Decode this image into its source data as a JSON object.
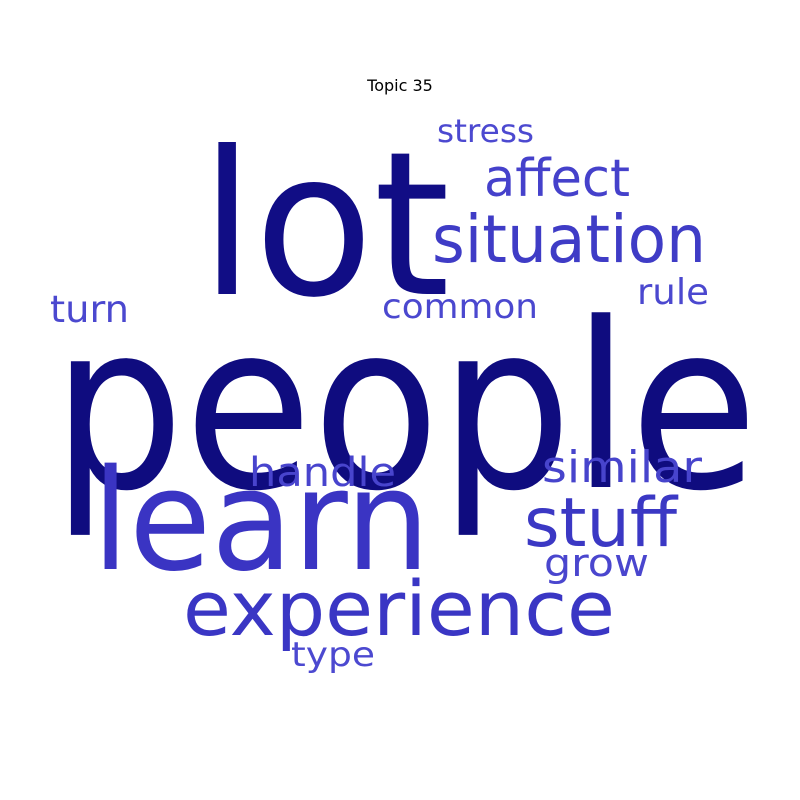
{
  "title": "Topic 35",
  "words": [
    {
      "text": "people",
      "color": "#0f0c7f"
    },
    {
      "text": "lot",
      "color": "#110d85"
    },
    {
      "text": "learn",
      "color": "#3a34c3"
    },
    {
      "text": "experience",
      "color": "#3a36c4"
    },
    {
      "text": "situation",
      "color": "#3f3cc6"
    },
    {
      "text": "stuff",
      "color": "#3b38c4"
    },
    {
      "text": "affect",
      "color": "#4541cb"
    },
    {
      "text": "similar",
      "color": "#4744cc"
    },
    {
      "text": "handle",
      "color": "#4844cd"
    },
    {
      "text": "common",
      "color": "#4b48cf"
    },
    {
      "text": "turn",
      "color": "#4b48cf"
    },
    {
      "text": "rule",
      "color": "#4b48cf"
    },
    {
      "text": "grow",
      "color": "#4a46ce"
    },
    {
      "text": "stress",
      "color": "#4c49d0"
    },
    {
      "text": "type",
      "color": "#4c49d0"
    }
  ]
}
